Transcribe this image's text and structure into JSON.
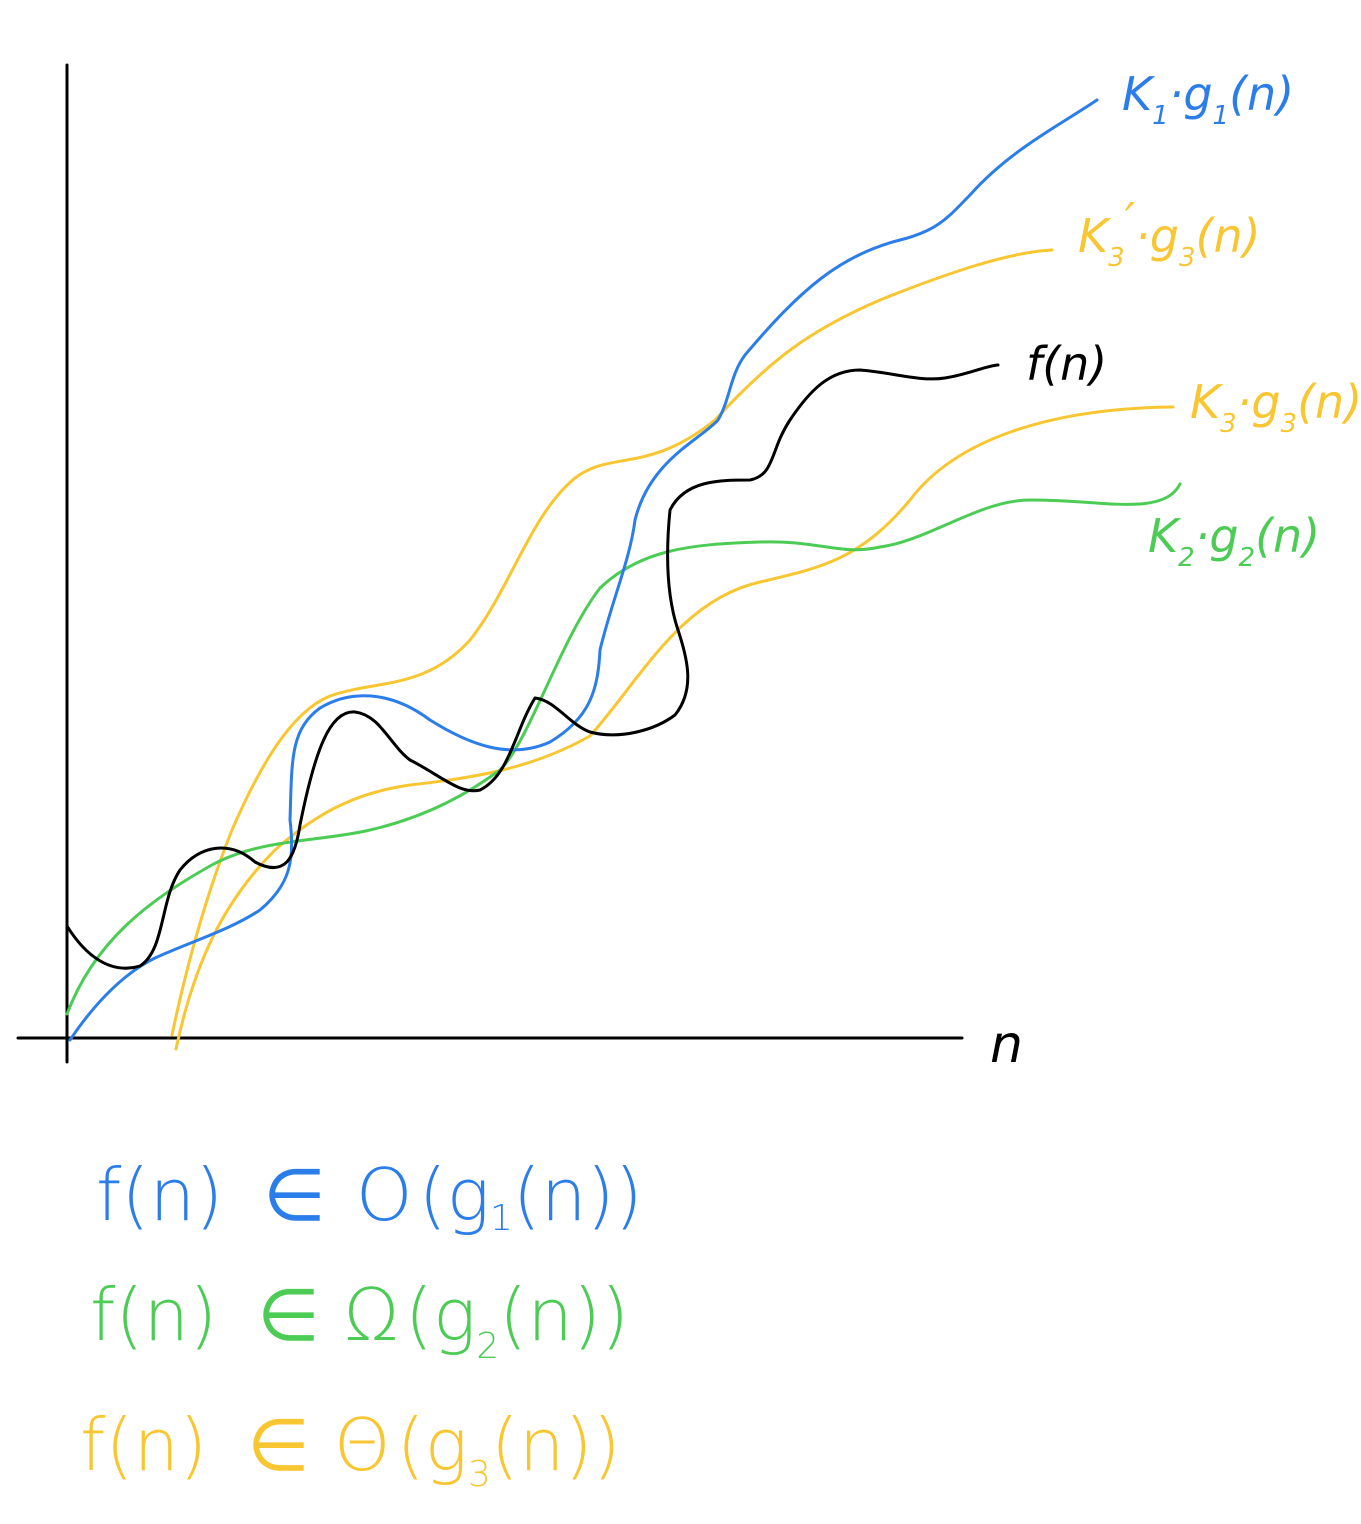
{
  "colors": {
    "f": "#000000",
    "g1": "#2b7de9",
    "g2": "#4ccc55",
    "g3": "#f8c630",
    "axis": "#000000"
  },
  "axes": {
    "x_label": "n"
  },
  "labels": {
    "f": "f(n)",
    "k1g1": {
      "k": "K",
      "k_sub": "1",
      "dot": "·",
      "g": "g",
      "g_sub": "1",
      "arg": "(n)"
    },
    "k3pg3": {
      "k": "K",
      "k_sub": "3",
      "prime": "′",
      "dot": "·",
      "g": "g",
      "g_sub": "3",
      "arg": "(n)"
    },
    "k3g3": {
      "k": "K",
      "k_sub": "3",
      "dot": "·",
      "g": "g",
      "g_sub": "3",
      "arg": "(n)"
    },
    "k2g2": {
      "k": "K",
      "k_sub": "2",
      "dot": "·",
      "g": "g",
      "g_sub": "2",
      "arg": "(n)"
    }
  },
  "equations": [
    {
      "lhs": "f(n)",
      "rel": "∈",
      "op": "O",
      "g": "g",
      "sub": "1",
      "arg": "(n)"
    },
    {
      "lhs": "f(n)",
      "rel": "∈",
      "op": "Ω",
      "g": "g",
      "sub": "2",
      "arg": "(n)"
    },
    {
      "lhs": "f(n)",
      "rel": "∈",
      "op": "Θ",
      "g": "g",
      "sub": "3",
      "arg": "(n)"
    }
  ]
}
